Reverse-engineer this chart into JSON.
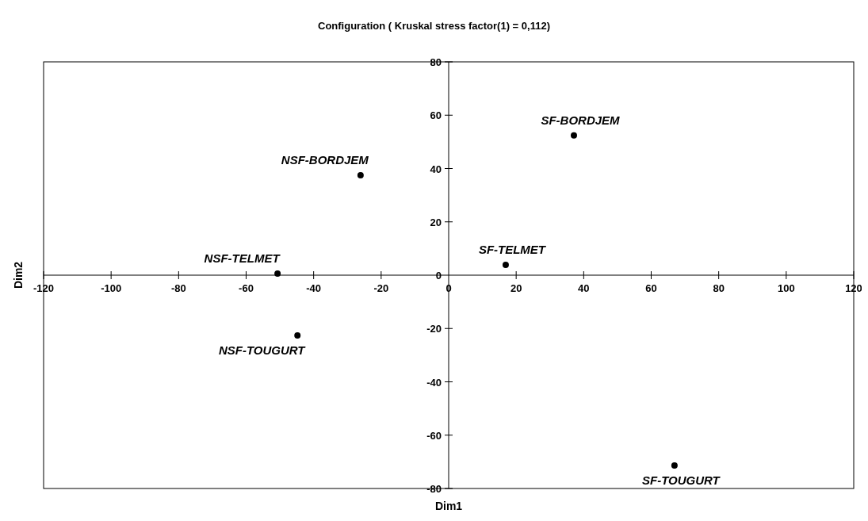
{
  "chart_data": {
    "type": "scatter",
    "title": "Configuration ( Kruskal stress factor(1) = 0,112)",
    "xlabel": "Dim1",
    "ylabel": "Dim2",
    "marker": "circle",
    "xlim": [
      -120,
      120
    ],
    "xticks": [
      -120,
      -100,
      -80,
      -60,
      -40,
      -20,
      0,
      20,
      40,
      60,
      80,
      100,
      120
    ],
    "ylim": [
      -80,
      80
    ],
    "yticks": [
      -80,
      -60,
      -40,
      -20,
      0,
      20,
      40,
      60,
      80
    ],
    "series": [
      {
        "name": "SF-BORDJEM",
        "color": "#000000",
        "x": [
          37.1
        ],
        "values": [
          52.4
        ]
      },
      {
        "name": "NSF-BORDJEM",
        "color": "#000000",
        "x": [
          -26.1
        ],
        "values": [
          37.5
        ]
      },
      {
        "name": "NSF-TELMET",
        "color": "#000000",
        "x": [
          -50.7
        ],
        "values": [
          0.6
        ]
      },
      {
        "name": "SF-TELMET",
        "color": "#000000",
        "x": [
          16.9
        ],
        "values": [
          3.9
        ]
      },
      {
        "name": "NSF-TOUGURT",
        "color": "#000000",
        "x": [
          -44.8
        ],
        "values": [
          -22.6
        ]
      },
      {
        "name": "SF-TOUGURT",
        "color": "#000000",
        "x": [
          66.9
        ],
        "values": [
          -71.4
        ]
      }
    ]
  }
}
